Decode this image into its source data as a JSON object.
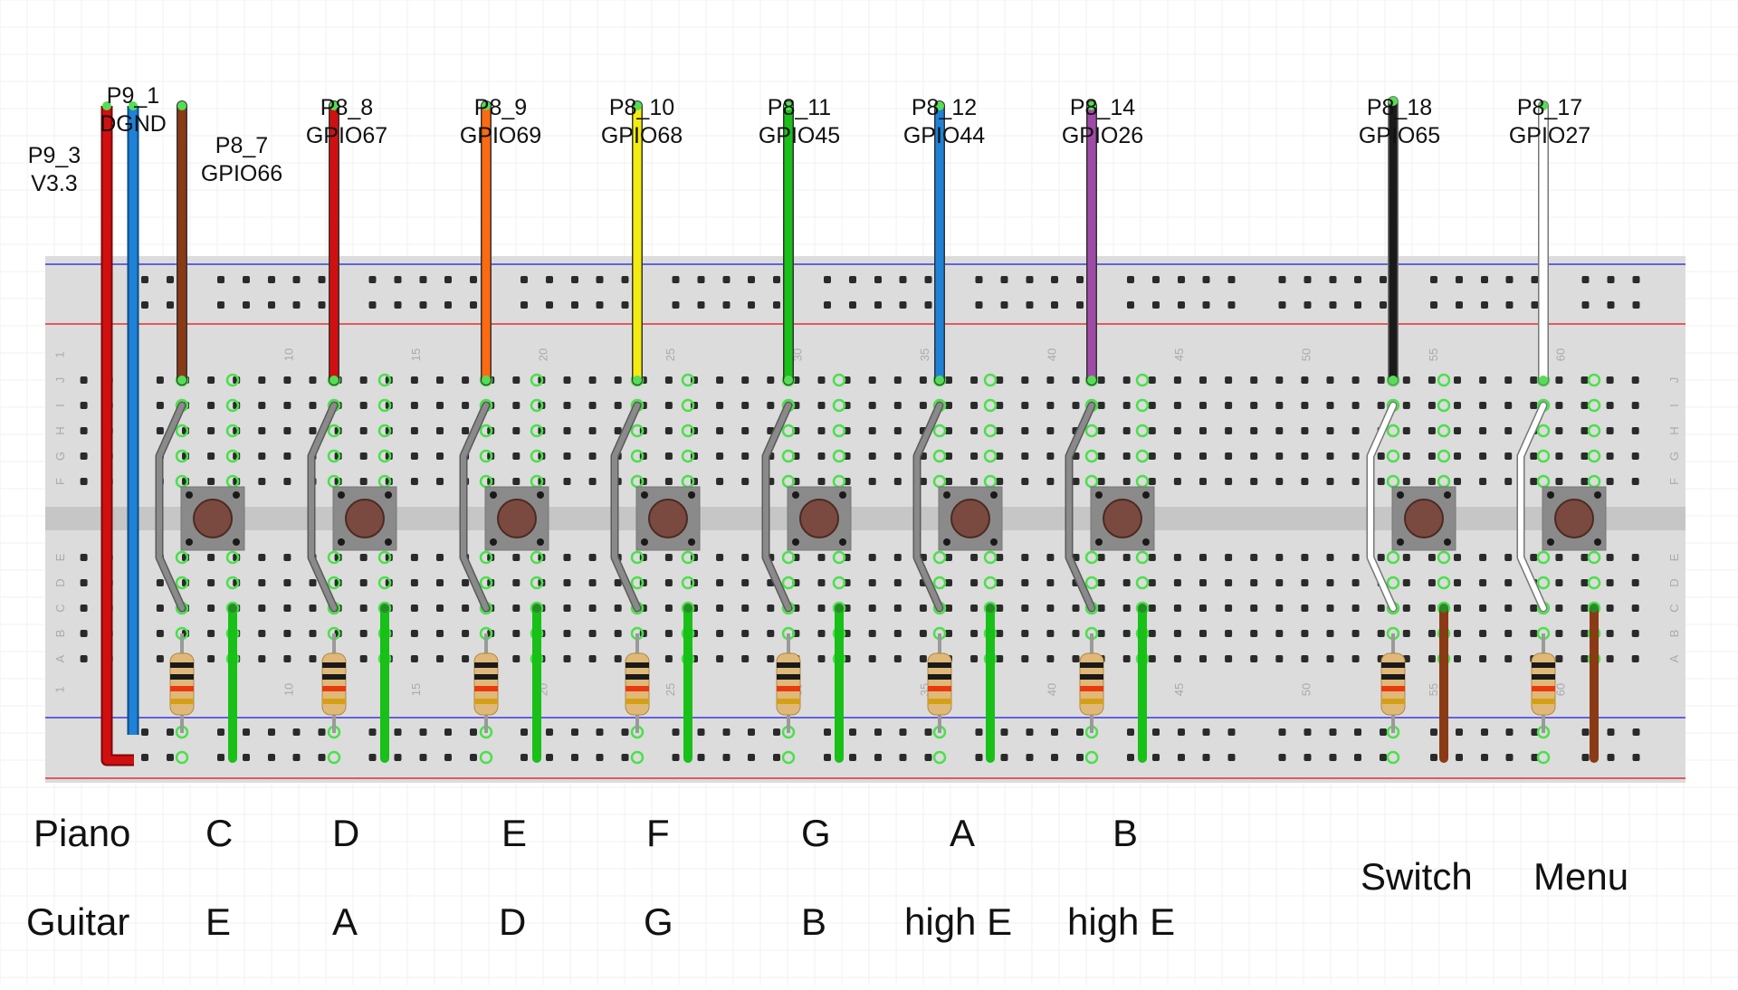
{
  "board": {
    "column_labels": [
      "1",
      "10",
      "15",
      "20",
      "25",
      "30",
      "35",
      "40",
      "45",
      "50",
      "55",
      "60"
    ],
    "row_labels_top": [
      "J",
      "I",
      "H",
      "G",
      "F"
    ],
    "row_labels_bottom": [
      "E",
      "D",
      "C",
      "B",
      "A"
    ]
  },
  "colors": {
    "rail_blue": "#3a3adf",
    "rail_red": "#e03030",
    "wire_v33": "#d20f0f",
    "wire_dgnd": "#1e82d8",
    "wire_gpio66": "#8a3a14",
    "wire_gpio67": "#d20f0f",
    "wire_gpio69": "#ff6a10",
    "wire_gpio68": "#f4ec10",
    "wire_gpio45": "#18c018",
    "wire_gpio44": "#1e82d8",
    "wire_gpio26": "#a04aa8",
    "wire_gpio65": "#1a1a1a",
    "wire_gpio27": "#ffffff",
    "jumper_green": "#18c018",
    "jumper_brown": "#8a3a14",
    "button_body": "#8a8a8a",
    "button_cap": "#7a4a40"
  },
  "pin_labels": [
    {
      "pin": "P9_3",
      "signal": "V3.3",
      "wire": "red"
    },
    {
      "pin": "P9_1",
      "signal": "DGND",
      "wire": "blue"
    },
    {
      "pin": "P8_7",
      "signal": "GPIO66",
      "wire": "brown"
    },
    {
      "pin": "P8_8",
      "signal": "GPIO67",
      "wire": "red"
    },
    {
      "pin": "P8_9",
      "signal": "GPIO69",
      "wire": "orange"
    },
    {
      "pin": "P8_10",
      "signal": "GPIO68",
      "wire": "yellow"
    },
    {
      "pin": "P8_11",
      "signal": "GPIO45",
      "wire": "green"
    },
    {
      "pin": "P8_12",
      "signal": "GPIO44",
      "wire": "blue"
    },
    {
      "pin": "P8_14",
      "signal": "GPIO26",
      "wire": "purple"
    },
    {
      "pin": "P8_18",
      "signal": "GPIO65",
      "wire": "black"
    },
    {
      "pin": "P8_17",
      "signal": "GPIO27",
      "wire": "white"
    }
  ],
  "rows": {
    "piano_label": "Piano",
    "guitar_label": "Guitar",
    "piano_notes": [
      "C",
      "D",
      "E",
      "F",
      "G",
      "A",
      "B"
    ],
    "guitar_notes": [
      "E",
      "A",
      "D",
      "G",
      "B",
      "high E",
      "high E"
    ],
    "extra_labels": [
      "Switch",
      "Menu"
    ]
  }
}
